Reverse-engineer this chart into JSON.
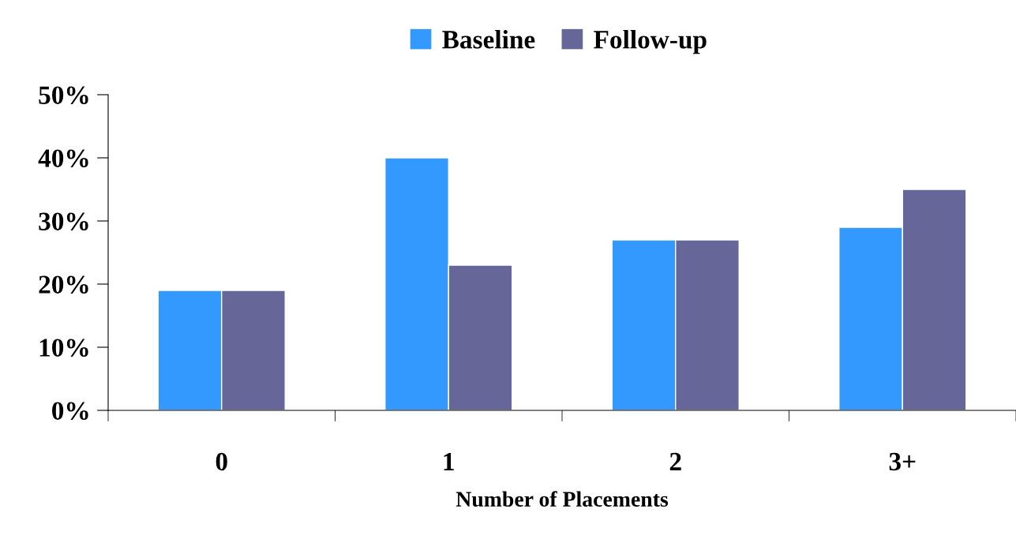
{
  "chart_data": {
    "type": "bar",
    "xlabel": "Number of Placements",
    "categories": [
      "0",
      "1",
      "2",
      "3+"
    ],
    "series": [
      {
        "name": "Baseline",
        "color": "#3399ff",
        "values": [
          19,
          40,
          27,
          29
        ]
      },
      {
        "name": "Follow-up",
        "color": "#666699",
        "values": [
          19,
          23,
          27,
          35
        ]
      }
    ],
    "ylim": [
      0,
      50
    ],
    "yticks": [
      {
        "value": 0,
        "label": "0%"
      },
      {
        "value": 10,
        "label": "10%"
      },
      {
        "value": 20,
        "label": "20%"
      },
      {
        "value": 30,
        "label": "30%"
      },
      {
        "value": 40,
        "label": "40%"
      },
      {
        "value": 50,
        "label": "50%"
      }
    ],
    "grid": false,
    "legend": "top"
  }
}
